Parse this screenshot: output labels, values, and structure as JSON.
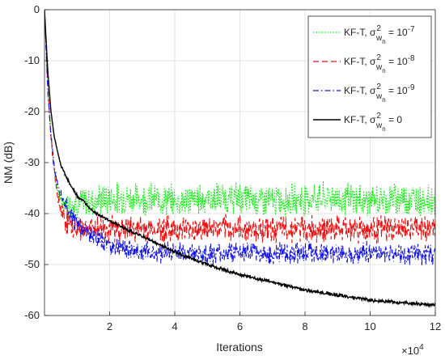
{
  "chart_data": {
    "type": "line",
    "xlabel": "Iterations",
    "ylabel": "NM (dB)",
    "x_exponent_label": "×10",
    "x_exponent_power": "4",
    "xlim": [
      0,
      12
    ],
    "ylim": [
      -60,
      0
    ],
    "xticks": [
      2,
      4,
      6,
      8,
      10,
      12
    ],
    "xtick_labels": [
      "2",
      "4",
      "6",
      "8",
      "10",
      "12"
    ],
    "yticks": [
      0,
      -10,
      -20,
      -30,
      -40,
      -50,
      -60
    ],
    "ytick_labels": [
      "0",
      "-10",
      "-20",
      "-30",
      "-40",
      "-50",
      "-60"
    ],
    "grid": true,
    "legend_position": "top-right",
    "series": [
      {
        "legend_prefix": "KF-T, σ",
        "legend_sub": "w",
        "legend_subsub": "n",
        "legend_sup": "2",
        "legend_suffix": " = 10",
        "legend_exp": "-7",
        "color": "#00ee00",
        "style": "dotted",
        "x": [
          0,
          0.1,
          0.2,
          0.3,
          0.4,
          0.5,
          0.6,
          0.8,
          1,
          1.5,
          2,
          3,
          4,
          5,
          6,
          7,
          8,
          9,
          10,
          11,
          12
        ],
        "y": [
          0,
          -14,
          -24,
          -31,
          -35.5,
          -37.5,
          -38,
          -38,
          -38,
          -37.5,
          -37,
          -37,
          -37.5,
          -37,
          -37,
          -37.5,
          -37,
          -37,
          -37.5,
          -37,
          -37.5
        ],
        "noise": 2.4
      },
      {
        "legend_prefix": "KF-T, σ",
        "legend_sub": "w",
        "legend_subsub": "n",
        "legend_sup": "2",
        "legend_suffix": " = 10",
        "legend_exp": "-8",
        "color": "#ee1111",
        "style": "dashed",
        "x": [
          0,
          0.1,
          0.2,
          0.3,
          0.4,
          0.6,
          0.8,
          1,
          1.5,
          2,
          3,
          4,
          5,
          6,
          7,
          8,
          9,
          10,
          11,
          12
        ],
        "y": [
          0,
          -15,
          -25,
          -32,
          -37,
          -41,
          -42.5,
          -43,
          -43,
          -43,
          -43,
          -43,
          -43,
          -43,
          -43,
          -43,
          -43,
          -43,
          -43,
          -43
        ],
        "noise": 2.0
      },
      {
        "legend_prefix": "KF-T, σ",
        "legend_sub": "w",
        "legend_subsub": "n",
        "legend_sup": "2",
        "legend_suffix": " = 10",
        "legend_exp": "-9",
        "color": "#1111ee",
        "style": "dashdot",
        "x": [
          0,
          0.1,
          0.2,
          0.3,
          0.5,
          0.8,
          1,
          1.5,
          2,
          2.5,
          3,
          4,
          5,
          6,
          7,
          8,
          9,
          10,
          11,
          12
        ],
        "y": [
          0,
          -16,
          -25,
          -31,
          -36,
          -40,
          -42,
          -44.5,
          -46,
          -47,
          -47.5,
          -47.5,
          -48,
          -47.5,
          -48,
          -47.5,
          -48,
          -47.5,
          -48,
          -48
        ],
        "noise": 1.6
      },
      {
        "legend_prefix": "KF-T, σ",
        "legend_sub": "w",
        "legend_subsub": "n",
        "legend_sup": "2",
        "legend_suffix": " = 0",
        "legend_exp": "",
        "color": "#000000",
        "style": "solid",
        "x": [
          0,
          0.1,
          0.2,
          0.3,
          0.5,
          0.8,
          1,
          1.5,
          2,
          3,
          4,
          5,
          6,
          7,
          8,
          9,
          10,
          11,
          12
        ],
        "y": [
          0,
          -12,
          -20,
          -25,
          -30.5,
          -34.5,
          -36.5,
          -39.5,
          -41.5,
          -44.5,
          -47.5,
          -50,
          -52,
          -53.5,
          -55,
          -56,
          -57,
          -57.5,
          -58
        ],
        "noise": 0.25
      }
    ]
  }
}
